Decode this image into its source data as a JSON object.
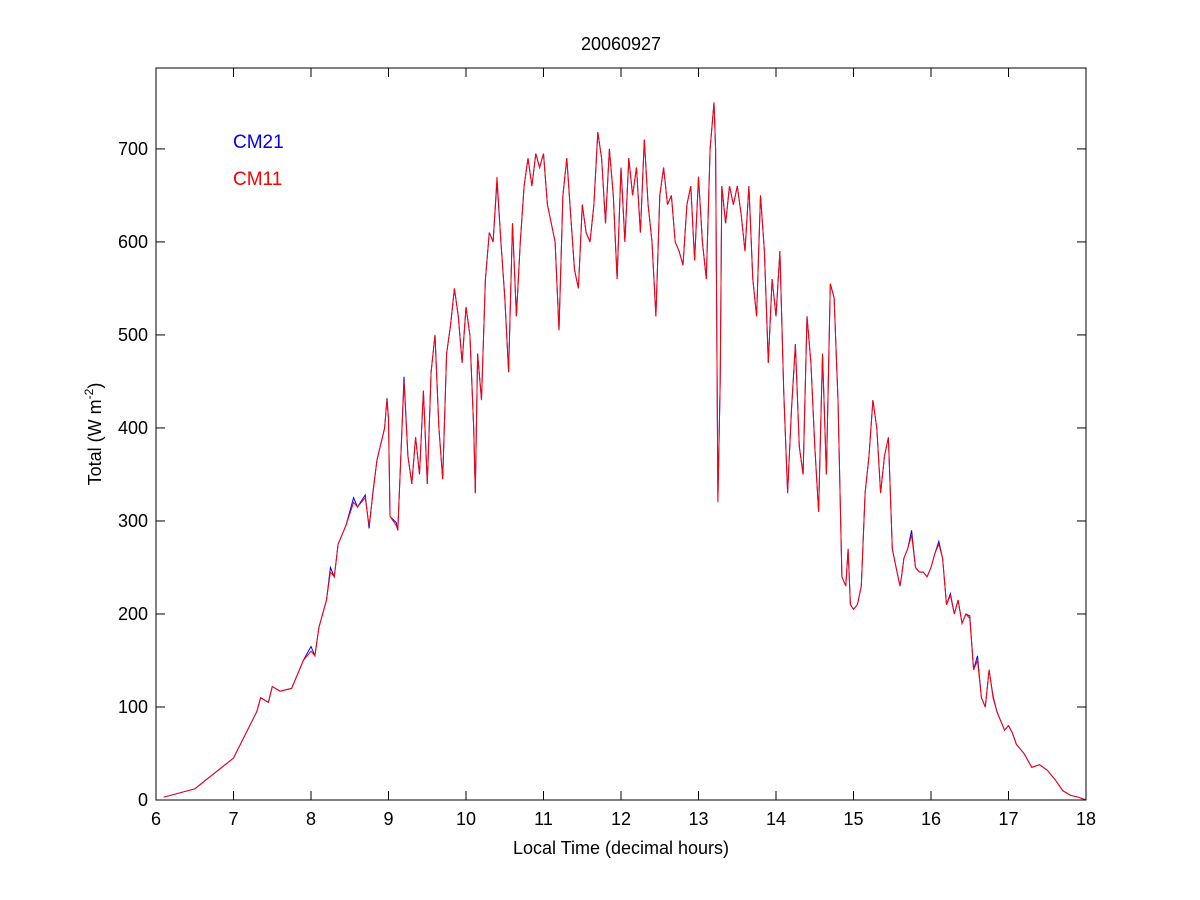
{
  "chart_data": {
    "type": "line",
    "title": "20060927",
    "xlabel": "Local Time (decimal hours)",
    "ylabel": "Total (W m",
    "ylabel_sup": "-2",
    "ylabel_end": ")",
    "xlim": [
      6,
      18
    ],
    "ylim": [
      0,
      787
    ],
    "xticks": [
      6,
      7,
      8,
      9,
      10,
      11,
      12,
      13,
      14,
      15,
      16,
      17,
      18
    ],
    "yticks": [
      0,
      100,
      200,
      300,
      400,
      500,
      600,
      700
    ],
    "grid": false,
    "legend_placement": "top-left",
    "x": [
      6.1,
      6.5,
      7.0,
      7.3,
      7.35,
      7.45,
      7.5,
      7.6,
      7.75,
      7.9,
      8.0,
      8.05,
      8.1,
      8.2,
      8.25,
      8.3,
      8.35,
      8.45,
      8.55,
      8.6,
      8.7,
      8.75,
      8.8,
      8.85,
      8.95,
      8.98,
      9.0,
      9.02,
      9.1,
      9.12,
      9.15,
      9.2,
      9.25,
      9.3,
      9.35,
      9.4,
      9.45,
      9.5,
      9.55,
      9.6,
      9.65,
      9.7,
      9.75,
      9.8,
      9.85,
      9.9,
      9.95,
      10.0,
      10.05,
      10.1,
      10.12,
      10.15,
      10.2,
      10.25,
      10.3,
      10.35,
      10.4,
      10.45,
      10.5,
      10.55,
      10.6,
      10.65,
      10.7,
      10.75,
      10.8,
      10.85,
      10.9,
      10.95,
      11.0,
      11.05,
      11.1,
      11.15,
      11.2,
      11.25,
      11.3,
      11.35,
      11.4,
      11.45,
      11.5,
      11.55,
      11.6,
      11.65,
      11.7,
      11.75,
      11.8,
      11.85,
      11.9,
      11.95,
      12.0,
      12.05,
      12.1,
      12.15,
      12.2,
      12.25,
      12.3,
      12.35,
      12.4,
      12.45,
      12.5,
      12.55,
      12.6,
      12.65,
      12.7,
      12.75,
      12.8,
      12.85,
      12.9,
      12.95,
      13.0,
      13.05,
      13.1,
      13.15,
      13.2,
      13.22,
      13.25,
      13.28,
      13.3,
      13.35,
      13.4,
      13.45,
      13.5,
      13.55,
      13.6,
      13.65,
      13.7,
      13.75,
      13.8,
      13.85,
      13.9,
      13.95,
      14.0,
      14.05,
      14.1,
      14.15,
      14.2,
      14.25,
      14.3,
      14.35,
      14.4,
      14.45,
      14.5,
      14.55,
      14.6,
      14.65,
      14.7,
      14.75,
      14.8,
      14.85,
      14.9,
      14.93,
      14.96,
      15.0,
      15.05,
      15.1,
      15.15,
      15.2,
      15.25,
      15.3,
      15.35,
      15.4,
      15.45,
      15.5,
      15.55,
      15.6,
      15.62,
      15.65,
      15.7,
      15.75,
      15.8,
      15.85,
      15.9,
      15.95,
      16.0,
      16.05,
      16.1,
      16.15,
      16.2,
      16.25,
      16.3,
      16.35,
      16.4,
      16.45,
      16.5,
      16.55,
      16.6,
      16.65,
      16.7,
      16.75,
      16.8,
      16.85,
      16.9,
      16.95,
      17.0,
      17.05,
      17.1,
      17.2,
      17.3,
      17.4,
      17.5,
      17.6,
      17.7,
      17.8,
      17.9,
      18.0
    ],
    "series": [
      {
        "name": "CM21",
        "color": "#0000ff",
        "values": [
          3,
          12,
          45,
          95,
          110,
          105,
          122,
          117,
          120,
          150,
          165,
          155,
          185,
          215,
          250,
          240,
          275,
          295,
          325,
          315,
          328,
          292,
          332,
          365,
          400,
          432,
          410,
          305,
          298,
          290,
          350,
          455,
          370,
          340,
          390,
          350,
          440,
          340,
          460,
          500,
          400,
          345,
          480,
          510,
          550,
          520,
          470,
          530,
          500,
          400,
          330,
          480,
          430,
          560,
          610,
          600,
          665,
          600,
          540,
          460,
          620,
          520,
          600,
          660,
          690,
          660,
          695,
          680,
          695,
          640,
          620,
          600,
          505,
          650,
          690,
          630,
          570,
          550,
          640,
          610,
          600,
          640,
          718,
          690,
          620,
          700,
          650,
          560,
          680,
          600,
          690,
          650,
          680,
          610,
          710,
          640,
          600,
          520,
          650,
          680,
          640,
          650,
          600,
          590,
          575,
          640,
          660,
          580,
          670,
          600,
          560,
          700,
          750,
          700,
          322,
          450,
          660,
          620,
          660,
          640,
          660,
          630,
          590,
          660,
          560,
          520,
          650,
          590,
          470,
          560,
          520,
          590,
          440,
          330,
          420,
          490,
          380,
          350,
          520,
          470,
          380,
          310,
          480,
          350,
          555,
          540,
          430,
          240,
          230,
          270,
          210,
          205,
          210,
          230,
          330,
          370,
          430,
          400,
          330,
          370,
          390,
          270,
          250,
          230,
          240,
          260,
          270,
          290,
          250,
          245,
          245,
          240,
          250,
          265,
          278,
          260,
          210,
          222,
          200,
          215,
          190,
          200,
          198,
          140,
          155,
          110,
          100,
          140,
          112,
          95,
          85,
          75,
          80,
          72,
          60,
          50,
          35,
          38,
          32,
          22,
          10,
          5,
          3,
          0
        ]
      },
      {
        "name": "CM11",
        "color": "#ff0000",
        "values": [
          3,
          12,
          45,
          95,
          110,
          105,
          122,
          117,
          120,
          150,
          160,
          155,
          185,
          215,
          245,
          240,
          275,
          295,
          320,
          315,
          325,
          295,
          330,
          365,
          400,
          430,
          410,
          305,
          295,
          290,
          350,
          450,
          370,
          340,
          390,
          350,
          440,
          340,
          460,
          500,
          400,
          345,
          480,
          510,
          550,
          520,
          470,
          530,
          500,
          400,
          330,
          480,
          430,
          560,
          610,
          600,
          670,
          600,
          540,
          460,
          620,
          520,
          600,
          660,
          690,
          660,
          695,
          680,
          695,
          640,
          620,
          600,
          505,
          650,
          690,
          630,
          570,
          550,
          640,
          610,
          600,
          640,
          718,
          690,
          620,
          700,
          650,
          560,
          680,
          600,
          690,
          650,
          680,
          610,
          710,
          640,
          600,
          520,
          650,
          680,
          640,
          650,
          600,
          590,
          575,
          640,
          660,
          580,
          670,
          600,
          560,
          700,
          750,
          700,
          320,
          450,
          660,
          620,
          660,
          640,
          660,
          630,
          590,
          660,
          560,
          520,
          650,
          590,
          470,
          560,
          520,
          590,
          440,
          330,
          420,
          490,
          380,
          350,
          520,
          470,
          380,
          310,
          480,
          350,
          555,
          540,
          430,
          240,
          230,
          270,
          210,
          205,
          210,
          230,
          330,
          370,
          430,
          400,
          330,
          370,
          390,
          270,
          250,
          230,
          240,
          260,
          270,
          285,
          250,
          245,
          245,
          240,
          250,
          265,
          275,
          260,
          210,
          220,
          200,
          215,
          190,
          200,
          195,
          140,
          150,
          110,
          100,
          140,
          110,
          95,
          85,
          75,
          80,
          72,
          60,
          50,
          35,
          38,
          32,
          22,
          10,
          5,
          3,
          0
        ]
      }
    ]
  }
}
